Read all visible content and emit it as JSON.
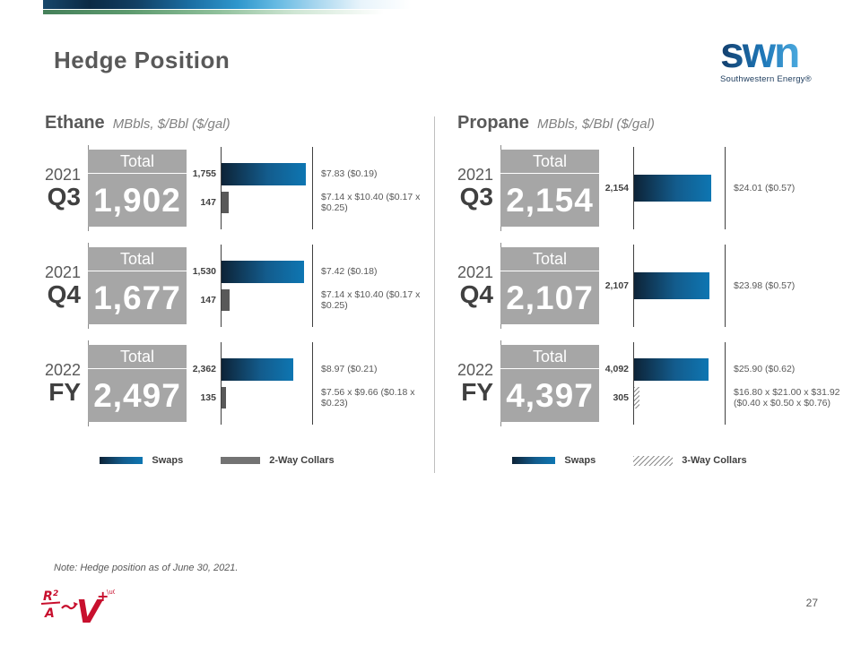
{
  "slide": {
    "title": "Hedge Position",
    "note": "Note: Hedge position as of June 30, 2021.",
    "page_number": "27"
  },
  "logo": {
    "word": "swn",
    "subtext": "Southwestern Energy®"
  },
  "colors": {
    "swaps_gradient": [
      "#0d2337",
      "#0e76b2"
    ],
    "collar_gray": "#595959",
    "total_box_gray": "#a6a6a6",
    "title_gray": "#595959",
    "brand_red": "#c8102e"
  },
  "chart_data": [
    {
      "type": "bar",
      "title": "Ethane",
      "subtitle": "MBbls, $/Bbl ($/gal)",
      "xlabel": "MBbls",
      "legend": [
        {
          "name": "Swaps",
          "style": "swaps"
        },
        {
          "name": "2-Way Collars",
          "style": "collar2"
        }
      ],
      "rows": [
        {
          "year": "2021",
          "period": "Q3",
          "total_label": "Total",
          "total": "1,902",
          "axis_max": 1900,
          "bars": [
            {
              "series": "Swaps",
              "value": 1755,
              "label": "1,755",
              "price": "$7.83 ($0.19)"
            },
            {
              "series": "2-Way Collars",
              "value": 147,
              "label": "147",
              "price": "$7.14 x $10.40 ($0.17 x $0.25)"
            }
          ]
        },
        {
          "year": "2021",
          "period": "Q4",
          "total_label": "Total",
          "total": "1,677",
          "axis_max": 1700,
          "bars": [
            {
              "series": "Swaps",
              "value": 1530,
              "label": "1,530",
              "price": "$7.42 ($0.18)"
            },
            {
              "series": "2-Way Collars",
              "value": 147,
              "label": "147",
              "price": "$7.14 x $10.40 ($0.17 x $0.25)"
            }
          ]
        },
        {
          "year": "2022",
          "period": "FY",
          "total_label": "Total",
          "total": "2,497",
          "axis_max": 3000,
          "bars": [
            {
              "series": "Swaps",
              "value": 2362,
              "label": "2,362",
              "price": "$8.97 ($0.21)"
            },
            {
              "series": "2-Way Collars",
              "value": 135,
              "label": "135",
              "price": "$7.56 x $9.66 ($0.18 x $0.23)"
            }
          ]
        }
      ]
    },
    {
      "type": "bar",
      "title": "Propane",
      "subtitle": "MBbls, $/Bbl ($/gal)",
      "xlabel": "MBbls",
      "legend": [
        {
          "name": "Swaps",
          "style": "swaps"
        },
        {
          "name": "3-Way Collars",
          "style": "collar3"
        }
      ],
      "rows": [
        {
          "year": "2021",
          "period": "Q3",
          "total_label": "Total",
          "total": "2,154",
          "axis_max": 2550,
          "bars": [
            {
              "series": "Swaps",
              "value": 2154,
              "label": "2,154",
              "price": "$24.01 ($0.57)"
            }
          ]
        },
        {
          "year": "2021",
          "period": "Q4",
          "total_label": "Total",
          "total": "2,107",
          "axis_max": 2550,
          "bars": [
            {
              "series": "Swaps",
              "value": 2107,
              "label": "2,107",
              "price": "$23.98 ($0.57)"
            }
          ]
        },
        {
          "year": "2022",
          "period": "FY",
          "total_label": "Total",
          "total": "4,397",
          "axis_max": 5000,
          "bars": [
            {
              "series": "Swaps",
              "value": 4092,
              "label": "4,092",
              "price": "$25.90 ($0.62)"
            },
            {
              "series": "3-Way Collars",
              "value": 305,
              "label": "305",
              "price": "$16.80 x $21.00 x $31.92 ($0.40 x $0.50 x $0.76)"
            }
          ]
        }
      ]
    }
  ]
}
